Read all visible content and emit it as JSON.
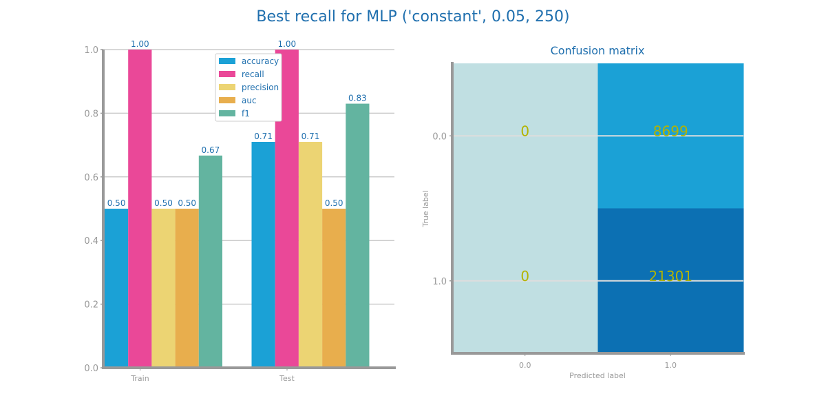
{
  "title": "Best recall for MLP ('constant', 0.05, 250)",
  "chart_data": [
    {
      "type": "bar",
      "categories": [
        "Train",
        "Test"
      ],
      "series": [
        {
          "name": "accuracy",
          "color": "#1ba1d6",
          "values": [
            0.5,
            0.71
          ],
          "labels": [
            "0.50",
            "0.71"
          ]
        },
        {
          "name": "recall",
          "color": "#ea4898",
          "values": [
            1.0,
            1.0
          ],
          "labels": [
            "1.00",
            "1.00"
          ]
        },
        {
          "name": "precision",
          "color": "#ecd473",
          "values": [
            0.5,
            0.71
          ],
          "labels": [
            "0.50",
            "0.71"
          ]
        },
        {
          "name": "auc",
          "color": "#e8ae4d",
          "values": [
            0.5,
            0.5
          ],
          "labels": [
            "0.50",
            "0.50"
          ]
        },
        {
          "name": "f1",
          "color": "#63b4a0",
          "values": [
            0.667,
            0.83
          ],
          "labels": [
            "0.67",
            "0.83"
          ]
        }
      ],
      "ylim": [
        0,
        1
      ],
      "yticks": [
        "0.0",
        "0.2",
        "0.4",
        "0.6",
        "0.8",
        "1.0"
      ],
      "grid": true,
      "legend": "top-center"
    },
    {
      "type": "heatmap",
      "title": "Confusion matrix",
      "xlabel": "Predicted label",
      "ylabel": "True label",
      "xticks": [
        "0.0",
        "1.0"
      ],
      "yticks": [
        "0.0",
        "1.0"
      ],
      "values": [
        [
          0,
          8699
        ],
        [
          0,
          21301
        ]
      ],
      "labels": [
        [
          "0",
          "8699"
        ],
        [
          "0",
          "21301"
        ]
      ],
      "colors": [
        [
          "#c0dfe2",
          "#1ba1d6"
        ],
        [
          "#c0dfe2",
          "#0c70b3"
        ]
      ]
    }
  ]
}
